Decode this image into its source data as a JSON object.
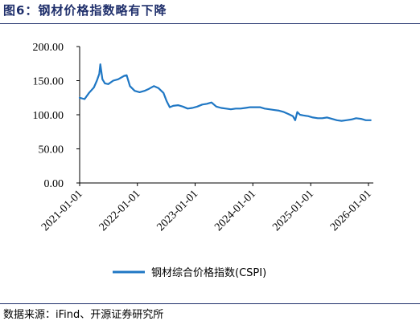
{
  "figure": {
    "title": "图6：钢材价格指数略有下降",
    "source": "数据来源：iFind、开源证券研究所"
  },
  "chart_data": {
    "type": "line",
    "title": "",
    "xlabel": "",
    "ylabel": "",
    "ylim": [
      0,
      200
    ],
    "yticks": [
      "0.00",
      "50.00",
      "100.00",
      "150.00",
      "200.00"
    ],
    "xlim": [
      "2021-01-01",
      "2026-02-01"
    ],
    "xticks": [
      "2021-01-01",
      "2022-01-01",
      "2023-01-01",
      "2024-01-01",
      "2025-01-01",
      "2026-01-01"
    ],
    "grid": false,
    "legend_position": "bottom-center",
    "series": [
      {
        "name": "钢材综合价格指数(CSPI)",
        "color": "#1f77c4",
        "x": [
          "2021-01-01",
          "2021-02-01",
          "2021-03-01",
          "2021-04-01",
          "2021-04-20",
          "2021-05-05",
          "2021-05-12",
          "2021-05-25",
          "2021-06-10",
          "2021-07-01",
          "2021-08-01",
          "2021-09-01",
          "2021-10-10",
          "2021-10-25",
          "2021-11-15",
          "2021-12-15",
          "2022-01-15",
          "2022-02-15",
          "2022-03-15",
          "2022-04-15",
          "2022-05-15",
          "2022-06-15",
          "2022-07-05",
          "2022-07-25",
          "2022-08-15",
          "2022-09-15",
          "2022-10-15",
          "2022-11-15",
          "2022-12-15",
          "2023-01-15",
          "2023-02-15",
          "2023-03-15",
          "2023-04-15",
          "2023-05-15",
          "2023-06-15",
          "2023-07-15",
          "2023-08-15",
          "2023-09-15",
          "2023-10-15",
          "2023-11-15",
          "2023-12-15",
          "2024-01-15",
          "2024-02-15",
          "2024-03-15",
          "2024-04-15",
          "2024-05-15",
          "2024-06-15",
          "2024-07-15",
          "2024-08-15",
          "2024-09-10",
          "2024-09-25",
          "2024-10-08",
          "2024-10-25",
          "2024-11-15",
          "2024-12-15",
          "2025-01-15",
          "2025-02-15",
          "2025-03-15",
          "2025-04-15",
          "2025-05-15",
          "2025-06-15",
          "2025-07-15",
          "2025-08-15",
          "2025-09-15",
          "2025-10-15",
          "2025-11-15",
          "2025-12-15",
          "2026-01-15"
        ],
        "values": [
          125,
          123,
          132,
          140,
          150,
          160,
          174,
          152,
          146,
          145,
          150,
          152,
          157,
          158,
          142,
          135,
          133,
          135,
          138,
          142,
          139,
          132,
          120,
          111,
          113,
          114,
          112,
          109,
          110,
          112,
          115,
          116,
          118,
          112,
          110,
          109,
          108,
          109,
          109,
          110,
          111,
          111,
          111,
          109,
          108,
          107,
          106,
          104,
          101,
          98,
          92,
          104,
          100,
          99,
          98,
          96,
          95,
          95,
          96,
          94,
          92,
          91,
          92,
          93,
          95,
          94,
          92,
          92
        ]
      }
    ]
  }
}
